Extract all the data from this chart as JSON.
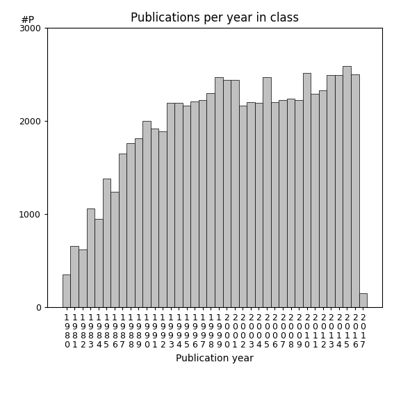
{
  "title": "Publications per year in class",
  "xlabel": "Publication year",
  "ylabel": "#P",
  "years": [
    1980,
    1981,
    1982,
    1983,
    1984,
    1985,
    1986,
    1987,
    1988,
    1989,
    1990,
    1991,
    1992,
    1993,
    1994,
    1995,
    1996,
    1997,
    1998,
    1999,
    2000,
    2001,
    2002,
    2003,
    2004,
    2005,
    2006,
    2007,
    2008,
    2009,
    2010,
    2011,
    2012,
    2013,
    2014,
    2015,
    2016,
    2017
  ],
  "values": [
    350,
    660,
    620,
    1060,
    950,
    1380,
    1240,
    1650,
    1760,
    1810,
    2000,
    1920,
    1890,
    2190,
    2190,
    2160,
    2210,
    2220,
    2300,
    2470,
    2440,
    2440,
    2160,
    2200,
    2190,
    2470,
    2200,
    2220,
    2240,
    2220,
    2510,
    2290,
    2330,
    2490,
    2490,
    2590,
    2500,
    150
  ],
  "bar_color": "#c0c0c0",
  "bar_edgecolor": "#000000",
  "ylim": [
    0,
    3000
  ],
  "yticks": [
    0,
    1000,
    2000,
    3000
  ],
  "background_color": "#ffffff",
  "title_fontsize": 12,
  "axis_fontsize": 10,
  "tick_fontsize": 9
}
